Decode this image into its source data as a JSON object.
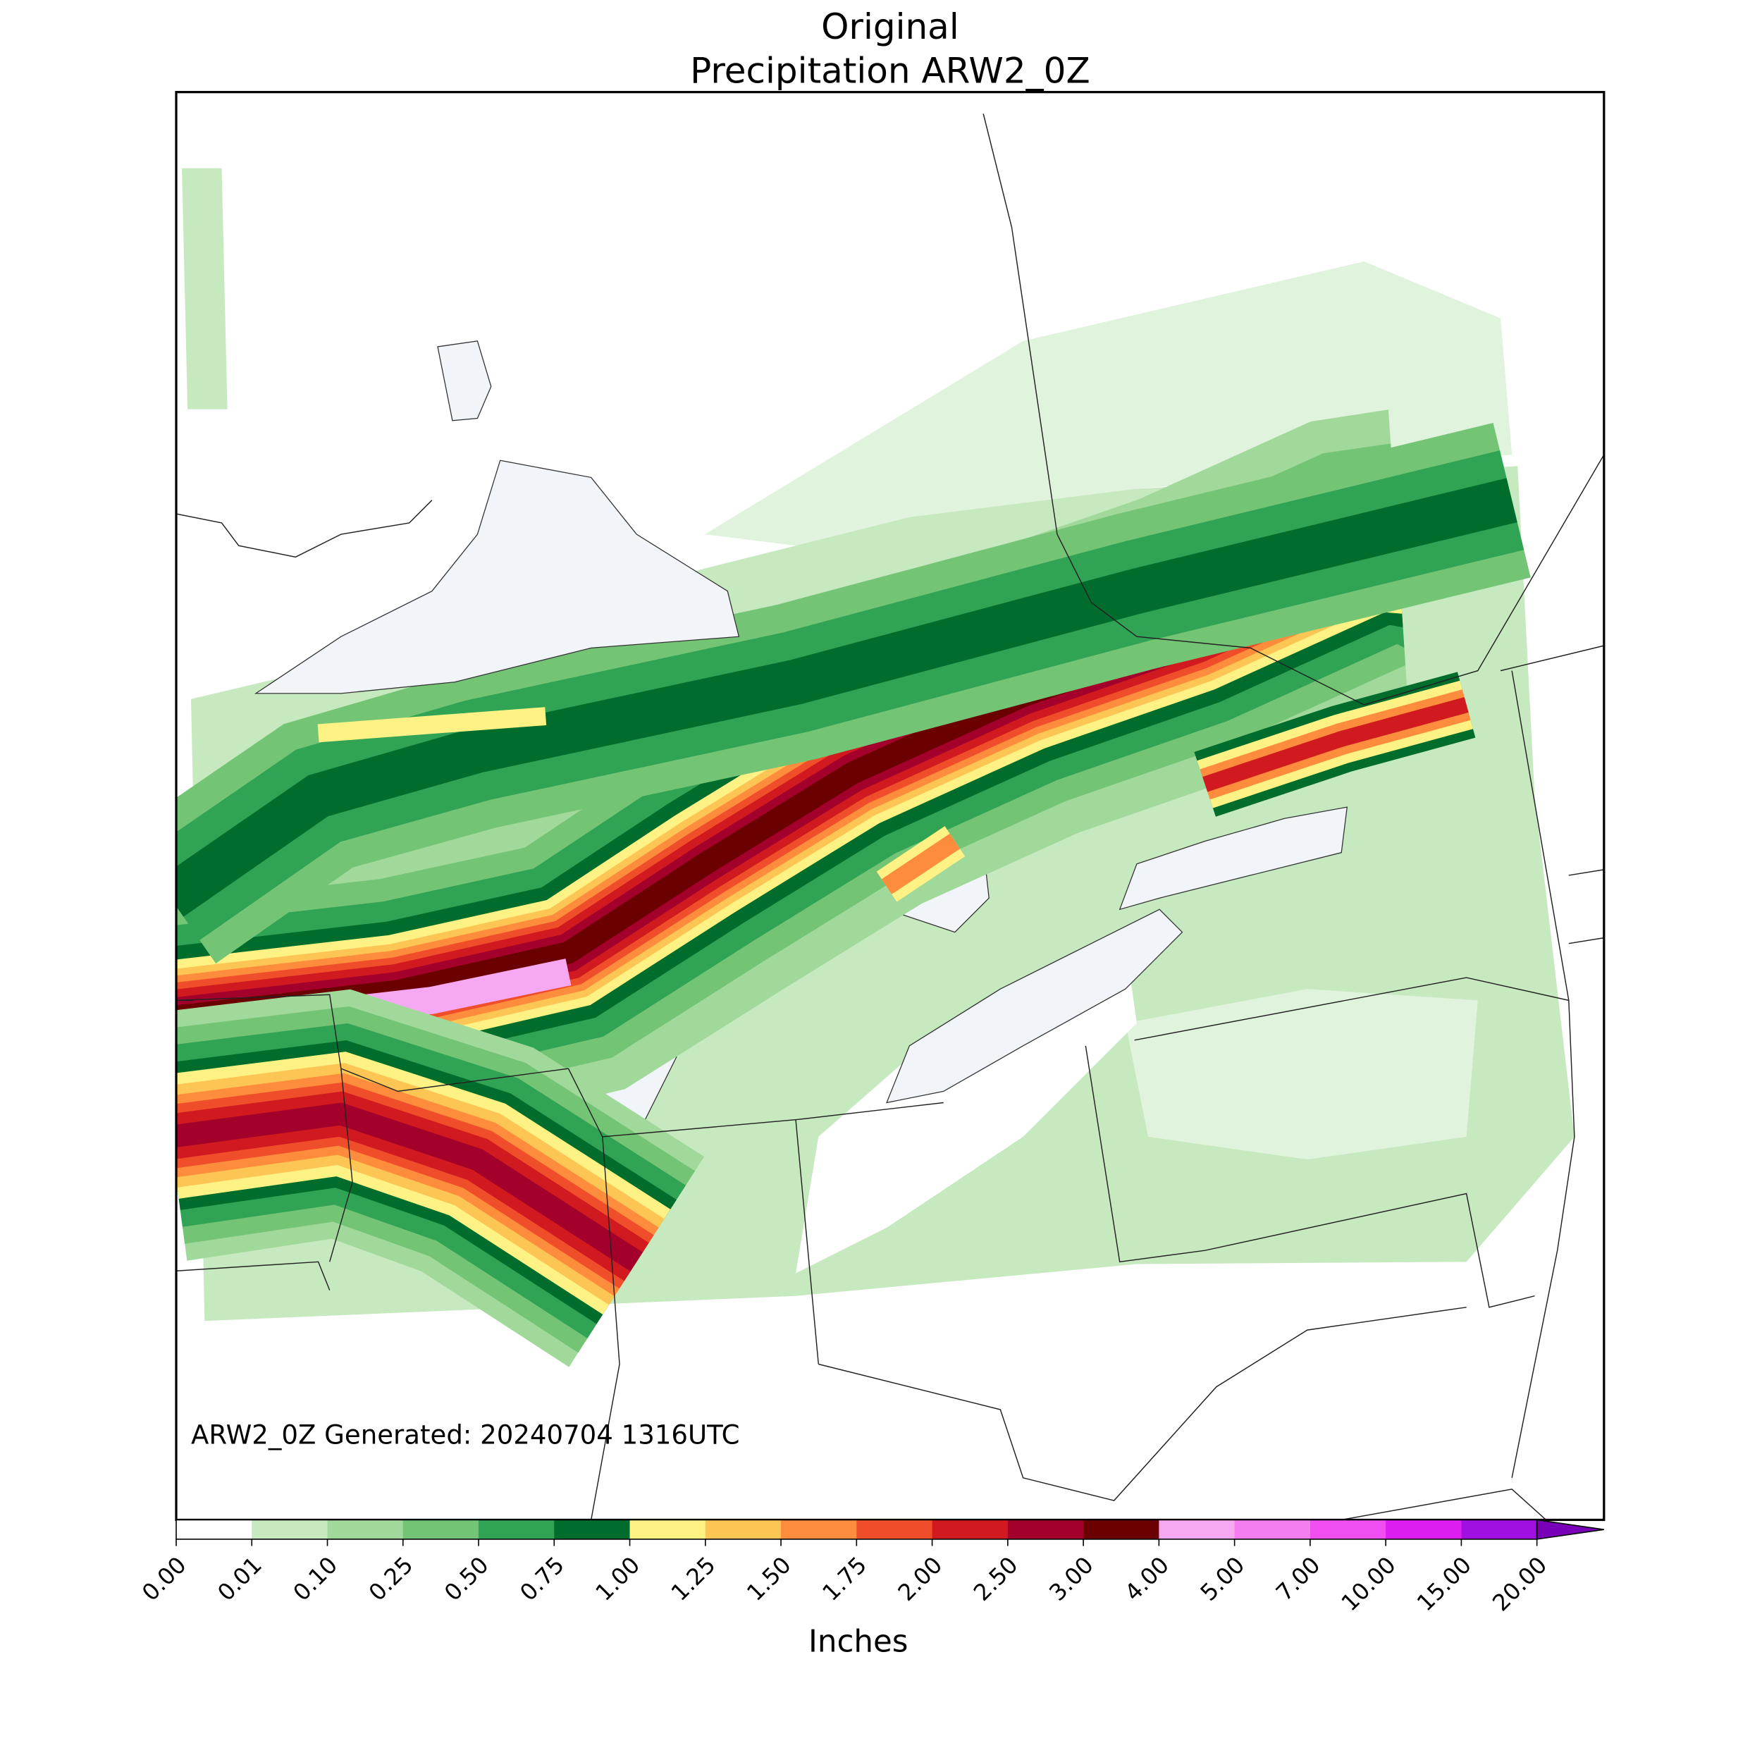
{
  "title": [
    "Original",
    "Precipitation ARW2_0Z"
  ],
  "annotation": "ARW2_0Z Generated: 20240704 1316UTC",
  "colorbar": {
    "label": "Inches",
    "ticks": [
      {
        "value": 0,
        "label": "0.00"
      },
      {
        "value": 0.01,
        "label": "0.01"
      },
      {
        "value": 0.1,
        "label": "0.10"
      },
      {
        "value": 0.25,
        "label": "0.25"
      },
      {
        "value": 0.5,
        "label": "0.50"
      },
      {
        "value": 0.75,
        "label": "0.75"
      },
      {
        "value": 1,
        "label": "1.00"
      },
      {
        "value": 1.25,
        "label": "1.25"
      },
      {
        "value": 1.5,
        "label": "1.50"
      },
      {
        "value": 1.75,
        "label": "1.75"
      },
      {
        "value": 2,
        "label": "2.00"
      },
      {
        "value": 2.5,
        "label": "2.50"
      },
      {
        "value": 3,
        "label": "3.00"
      },
      {
        "value": 4,
        "label": "4.00"
      },
      {
        "value": 5,
        "label": "5.00"
      },
      {
        "value": 7,
        "label": "7.00"
      },
      {
        "value": 10,
        "label": "10.00"
      },
      {
        "value": 15,
        "label": "15.00"
      },
      {
        "value": 20,
        "label": "20.00"
      }
    ],
    "colors": [
      "#ffffff",
      "#c7e9c0",
      "#a1d99b",
      "#74c476",
      "#31a354",
      "#006d2c",
      "#fef285",
      "#fdc553",
      "#fd8d3c",
      "#f04e2a",
      "#d11a1f",
      "#a3002b",
      "#6b0000",
      "#f7a8f2",
      "#f47ef0",
      "#f04ef0",
      "#de1ef0",
      "#a010e0"
    ],
    "extend_color": "#7a00b8"
  }
}
